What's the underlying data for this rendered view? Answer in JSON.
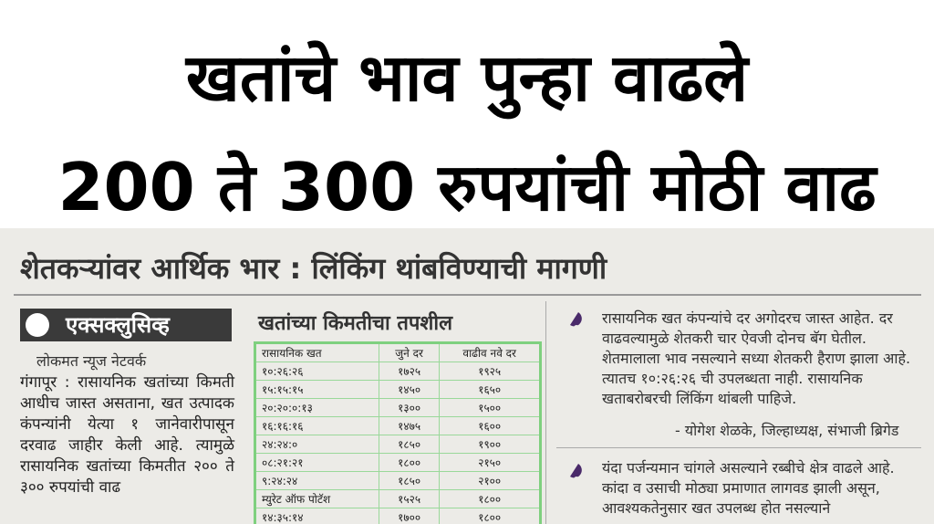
{
  "headline": {
    "line1": "खतांचे भाव पुन्हा वाढले",
    "line2": "200 ते 300 रुपयांची मोठी वाढ"
  },
  "subheadline": "शेतकऱ्यांवर आर्थिक भार : लिंकिंग थांबविण्याची मागणी",
  "left_column": {
    "badge": "एक्सक्लुसिव्ह",
    "byline": "लोकमत न्यूज नेटवर्क",
    "body": "गंगापूर : रासायनिक खतांच्या किमती आधीच जास्त असताना, खत उत्पादक कंपन्यांनी येत्या १ जानेवारीपासून दरवाढ जाहीर केली आहे. त्यामुळे रासायनिक खतांच्या किमतीत २०० ते ३०० रुपयांची वाढ"
  },
  "table": {
    "title": "खतांच्या किमतीचा तपशील",
    "headers": [
      "रासायनिक खत",
      "जुने दर",
      "वाढीव नवे दर"
    ],
    "rows": [
      [
        "१०:२६:२६",
        "१७२५",
        "१९२५"
      ],
      [
        "१५:१५:१५",
        "१४५०",
        "१६५०"
      ],
      [
        "२०:२०:०:१३",
        "१३००",
        "१५००"
      ],
      [
        "१६:१६:१६",
        "१४७५",
        "१६००"
      ],
      [
        "२४:२४:०",
        "१८५०",
        "१९००"
      ],
      [
        "०८:२१:२१",
        "१८००",
        "२१५०"
      ],
      [
        "९:२४:२४",
        "१८५०",
        "२१००"
      ],
      [
        "म्युरेट ऑफ पोटॅश",
        "१५२५",
        "१८००"
      ],
      [
        "१४:३५:१४",
        "१७००",
        "१८००"
      ]
    ]
  },
  "right_column": {
    "quote1": "रासायनिक खत कंपन्यांचे दर अगोदरच जास्त आहेत. दर वाढवल्यामुळे शेतकरी चार ऐवजी दोनच बॅग घेतील. शेतमालाला भाव नसल्याने सध्या शेतकरी हैराण झाला आहे. त्यातच १०:२६:२६ ची उपलब्धता नाही. रासायनिक खताबरोबरची लिंकिंग थांबली पाहिजे.",
    "quote1_attribution": "- योगेश शेळके, जिल्हाध्यक्ष, संभाजी ब्रिगेड",
    "quote2": "यंदा पर्जन्यमान चांगले असल्याने रब्बीचे क्षेत्र वाढले आहे. कांदा व उसाची मोठ्या प्रमाणात लागवड झाली असून, आवश्यकतेनुसार खत उपलब्ध होत नसल्याने"
  }
}
